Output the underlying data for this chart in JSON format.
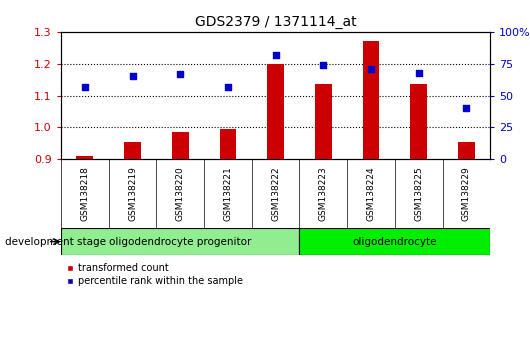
{
  "title": "GDS2379 / 1371114_at",
  "samples": [
    "GSM138218",
    "GSM138219",
    "GSM138220",
    "GSM138221",
    "GSM138222",
    "GSM138223",
    "GSM138224",
    "GSM138225",
    "GSM138229"
  ],
  "transformed_count": [
    0.91,
    0.955,
    0.985,
    0.995,
    1.2,
    1.135,
    1.27,
    1.135,
    0.955
  ],
  "percentile_rank": [
    57,
    65,
    67,
    57,
    82,
    74,
    71,
    68,
    40
  ],
  "ylim_left": [
    0.9,
    1.3
  ],
  "ylim_right": [
    0,
    100
  ],
  "yticks_left": [
    0.9,
    1.0,
    1.1,
    1.2,
    1.3
  ],
  "yticks_right": [
    0,
    25,
    50,
    75,
    100
  ],
  "groups": [
    {
      "label": "oligodendrocyte progenitor",
      "start": 0,
      "end": 4,
      "color": "#90EE90"
    },
    {
      "label": "oligodendrocyte",
      "start": 5,
      "end": 8,
      "color": "#00DD00"
    }
  ],
  "bar_color": "#CC0000",
  "dot_color": "#0000CC",
  "bar_width": 0.35,
  "background_color": "#ffffff",
  "tick_label_color_left": "#CC0000",
  "tick_label_color_right": "#0000CC",
  "legend_labels": [
    "transformed count",
    "percentile rank within the sample"
  ],
  "dev_stage_label": "development stage",
  "gray_color": "#D3D3D3",
  "green1_color": "#90EE90",
  "green2_color": "#00EE00"
}
